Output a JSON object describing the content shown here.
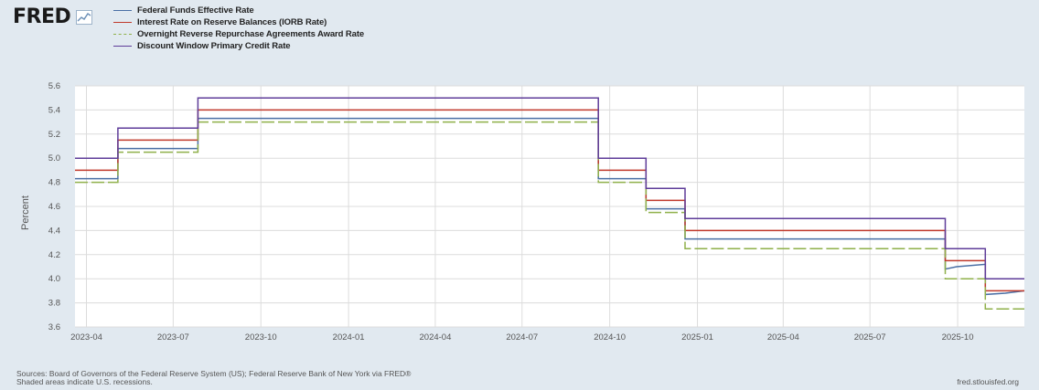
{
  "logo": {
    "text": "FRED"
  },
  "footer": {
    "sources": "Sources: Board of Governors of the Federal Reserve System (US); Federal Reserve Bank of New York via FRED®",
    "recessions": "Shaded areas indicate U.S. recessions.",
    "credit": "fred.stlouisfed.org"
  },
  "colors": {
    "background": "#e1e9f0",
    "plot": "#ffffff",
    "grid": "#dcdcdc"
  },
  "chart_data": {
    "type": "line",
    "ylabel": "Percent",
    "ylim": [
      3.6,
      5.6
    ],
    "yticks": [
      3.6,
      3.8,
      4.0,
      4.2,
      4.4,
      4.6,
      4.8,
      5.0,
      5.2,
      5.4,
      5.6
    ],
    "xlim": [
      "2023-03-20",
      "2025-12-10"
    ],
    "xticks": [
      {
        "date": "2023-04-01",
        "label": "2023-04"
      },
      {
        "date": "2023-07-01",
        "label": "2023-07"
      },
      {
        "date": "2023-10-01",
        "label": "2023-10"
      },
      {
        "date": "2024-01-01",
        "label": "2024-01"
      },
      {
        "date": "2024-04-01",
        "label": "2024-04"
      },
      {
        "date": "2024-07-01",
        "label": "2024-07"
      },
      {
        "date": "2024-10-01",
        "label": "2024-10"
      },
      {
        "date": "2025-01-01",
        "label": "2025-01"
      },
      {
        "date": "2025-04-01",
        "label": "2025-04"
      },
      {
        "date": "2025-07-01",
        "label": "2025-07"
      },
      {
        "date": "2025-10-01",
        "label": "2025-10"
      }
    ],
    "grid": true,
    "legend": "top",
    "series": [
      {
        "name": "Federal Funds Effective Rate",
        "color": "#4a6fa5",
        "dash": false,
        "points": [
          [
            "2023-03-20",
            4.83
          ],
          [
            "2023-05-04",
            4.83
          ],
          [
            "2023-05-04",
            5.08
          ],
          [
            "2023-07-27",
            5.08
          ],
          [
            "2023-07-27",
            5.33
          ],
          [
            "2024-09-19",
            5.33
          ],
          [
            "2024-09-19",
            4.83
          ],
          [
            "2024-11-08",
            4.83
          ],
          [
            "2024-11-08",
            4.58
          ],
          [
            "2024-12-19",
            4.58
          ],
          [
            "2024-12-19",
            4.33
          ],
          [
            "2025-09-18",
            4.33
          ],
          [
            "2025-09-18",
            4.08
          ],
          [
            "2025-09-30",
            4.1
          ],
          [
            "2025-10-30",
            4.12
          ],
          [
            "2025-10-30",
            3.87
          ],
          [
            "2025-11-20",
            3.88
          ],
          [
            "2025-12-10",
            3.9
          ]
        ]
      },
      {
        "name": "Interest Rate on Reserve Balances (IORB Rate)",
        "color": "#c0392b",
        "dash": false,
        "points": [
          [
            "2023-03-20",
            4.9
          ],
          [
            "2023-05-04",
            4.9
          ],
          [
            "2023-05-04",
            5.15
          ],
          [
            "2023-07-27",
            5.15
          ],
          [
            "2023-07-27",
            5.4
          ],
          [
            "2024-09-19",
            5.4
          ],
          [
            "2024-09-19",
            4.9
          ],
          [
            "2024-11-08",
            4.9
          ],
          [
            "2024-11-08",
            4.65
          ],
          [
            "2024-12-19",
            4.65
          ],
          [
            "2024-12-19",
            4.4
          ],
          [
            "2025-09-18",
            4.4
          ],
          [
            "2025-09-18",
            4.15
          ],
          [
            "2025-10-30",
            4.15
          ],
          [
            "2025-10-30",
            3.9
          ],
          [
            "2025-12-10",
            3.9
          ]
        ]
      },
      {
        "name": "Overnight Reverse Repurchase Agreements Award Rate",
        "color": "#8fb04a",
        "dash": true,
        "points": [
          [
            "2023-03-20",
            4.8
          ],
          [
            "2023-05-04",
            4.8
          ],
          [
            "2023-05-04",
            5.05
          ],
          [
            "2023-07-27",
            5.05
          ],
          [
            "2023-07-27",
            5.3
          ],
          [
            "2024-09-19",
            5.3
          ],
          [
            "2024-09-19",
            4.8
          ],
          [
            "2024-11-08",
            4.8
          ],
          [
            "2024-11-08",
            4.55
          ],
          [
            "2024-12-19",
            4.55
          ],
          [
            "2024-12-19",
            4.25
          ],
          [
            "2025-09-18",
            4.25
          ],
          [
            "2025-09-18",
            4.0
          ],
          [
            "2025-10-30",
            4.0
          ],
          [
            "2025-10-30",
            3.75
          ],
          [
            "2025-12-10",
            3.75
          ]
        ]
      },
      {
        "name": "Discount Window Primary Credit Rate",
        "color": "#5e3c99",
        "dash": false,
        "points": [
          [
            "2023-03-20",
            5.0
          ],
          [
            "2023-05-04",
            5.0
          ],
          [
            "2023-05-04",
            5.25
          ],
          [
            "2023-07-27",
            5.25
          ],
          [
            "2023-07-27",
            5.5
          ],
          [
            "2024-09-19",
            5.5
          ],
          [
            "2024-09-19",
            5.0
          ],
          [
            "2024-11-08",
            5.0
          ],
          [
            "2024-11-08",
            4.75
          ],
          [
            "2024-12-19",
            4.75
          ],
          [
            "2024-12-19",
            4.5
          ],
          [
            "2025-09-18",
            4.5
          ],
          [
            "2025-09-18",
            4.25
          ],
          [
            "2025-10-30",
            4.25
          ],
          [
            "2025-10-30",
            4.0
          ],
          [
            "2025-12-10",
            4.0
          ]
        ]
      }
    ]
  }
}
